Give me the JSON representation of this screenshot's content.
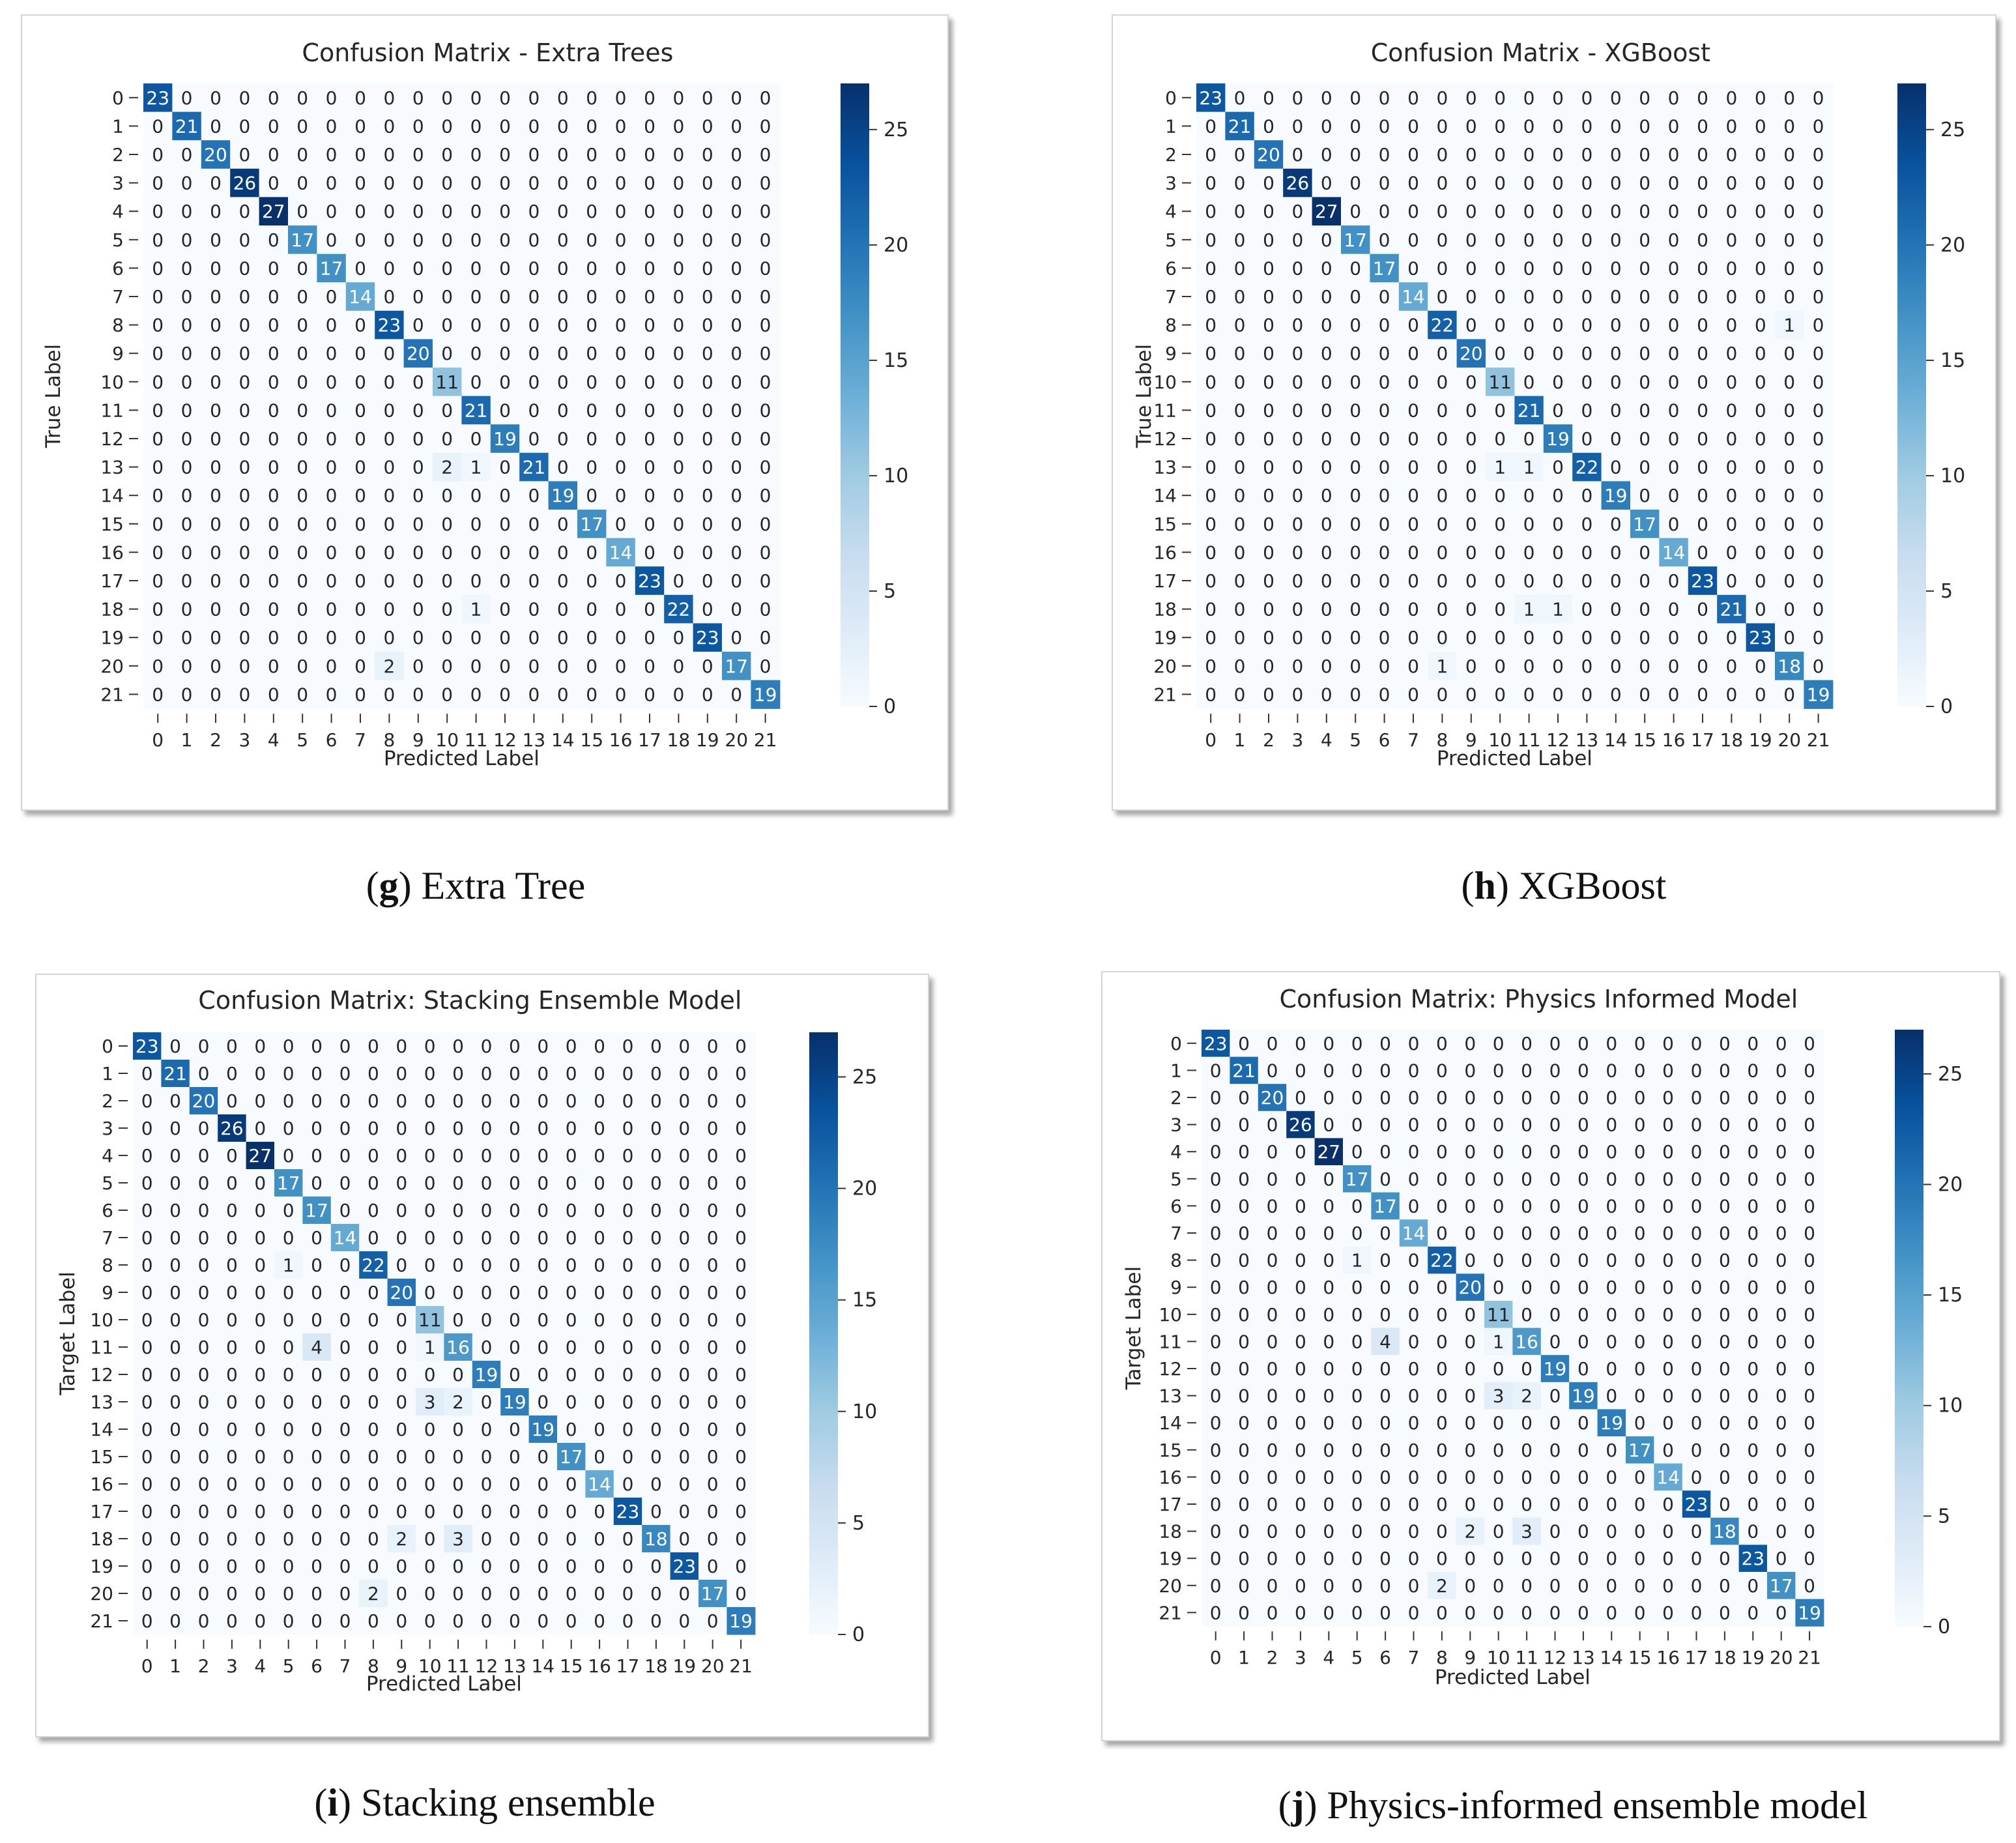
{
  "colorscale": [
    "#f7fbff",
    "#deebf7",
    "#c6dbef",
    "#9ecae1",
    "#6baed6",
    "#4292c6",
    "#2171b5",
    "#08519c",
    "#08306b"
  ],
  "chart_data": [
    {
      "type": "heatmap",
      "title": "Confusion Matrix - Extra Trees",
      "xlabel": "Predicted Label",
      "ylabel": "True Label",
      "labels": [
        "0",
        "1",
        "2",
        "3",
        "4",
        "5",
        "6",
        "7",
        "8",
        "9",
        "10",
        "11",
        "12",
        "13",
        "14",
        "15",
        "16",
        "17",
        "18",
        "19",
        "20",
        "21"
      ],
      "colorbar": {
        "min": 0,
        "max": 27,
        "ticks": [
          0,
          5,
          10,
          15,
          20,
          25
        ]
      },
      "diagonal": [
        23,
        21,
        20,
        26,
        27,
        17,
        17,
        14,
        23,
        20,
        11,
        21,
        19,
        21,
        19,
        17,
        14,
        23,
        22,
        23,
        17,
        19
      ],
      "offdiag": [
        [
          13,
          10,
          2
        ],
        [
          13,
          11,
          1
        ],
        [
          18,
          11,
          1
        ],
        [
          20,
          8,
          2
        ]
      ],
      "caption": {
        "letter": "g",
        "text": "Extra Tree"
      }
    },
    {
      "type": "heatmap",
      "title": "Confusion Matrix - XGBoost",
      "xlabel": "Predicted Label",
      "ylabel": "True Label",
      "labels": [
        "0",
        "1",
        "2",
        "3",
        "4",
        "5",
        "6",
        "7",
        "8",
        "9",
        "10",
        "11",
        "12",
        "13",
        "14",
        "15",
        "16",
        "17",
        "18",
        "19",
        "20",
        "21"
      ],
      "colorbar": {
        "min": 0,
        "max": 27,
        "ticks": [
          0,
          5,
          10,
          15,
          20,
          25
        ]
      },
      "diagonal": [
        23,
        21,
        20,
        26,
        27,
        17,
        17,
        14,
        22,
        20,
        11,
        21,
        19,
        22,
        19,
        17,
        14,
        23,
        21,
        23,
        18,
        19
      ],
      "offdiag": [
        [
          8,
          20,
          1
        ],
        [
          13,
          10,
          1
        ],
        [
          13,
          11,
          1
        ],
        [
          18,
          11,
          1
        ],
        [
          18,
          12,
          1
        ],
        [
          20,
          8,
          1
        ]
      ],
      "caption": {
        "letter": "h",
        "text": "XGBoost"
      }
    },
    {
      "type": "heatmap",
      "title": "Confusion Matrix: Stacking Ensemble Model",
      "xlabel": "Predicted Label",
      "ylabel": "Target Label",
      "labels": [
        "0",
        "1",
        "2",
        "3",
        "4",
        "5",
        "6",
        "7",
        "8",
        "9",
        "10",
        "11",
        "12",
        "13",
        "14",
        "15",
        "16",
        "17",
        "18",
        "19",
        "20",
        "21"
      ],
      "colorbar": {
        "min": 0,
        "max": 27,
        "ticks": [
          0,
          5,
          10,
          15,
          20,
          25
        ]
      },
      "diagonal": [
        23,
        21,
        20,
        26,
        27,
        17,
        17,
        14,
        22,
        20,
        11,
        16,
        19,
        19,
        19,
        17,
        14,
        23,
        18,
        23,
        17,
        19
      ],
      "offdiag": [
        [
          8,
          5,
          1
        ],
        [
          11,
          6,
          4
        ],
        [
          11,
          10,
          1
        ],
        [
          13,
          10,
          3
        ],
        [
          13,
          11,
          2
        ],
        [
          18,
          9,
          2
        ],
        [
          18,
          11,
          3
        ],
        [
          20,
          8,
          2
        ]
      ],
      "caption": {
        "letter": "i",
        "text": "Stacking ensemble"
      }
    },
    {
      "type": "heatmap",
      "title": "Confusion Matrix: Physics Informed Model",
      "xlabel": "Predicted Label",
      "ylabel": "Target Label",
      "labels": [
        "0",
        "1",
        "2",
        "3",
        "4",
        "5",
        "6",
        "7",
        "8",
        "9",
        "10",
        "11",
        "12",
        "13",
        "14",
        "15",
        "16",
        "17",
        "18",
        "19",
        "20",
        "21"
      ],
      "colorbar": {
        "min": 0,
        "max": 27,
        "ticks": [
          0,
          5,
          10,
          15,
          20,
          25
        ]
      },
      "diagonal": [
        23,
        21,
        20,
        26,
        27,
        17,
        17,
        14,
        22,
        20,
        11,
        16,
        19,
        19,
        19,
        17,
        14,
        23,
        18,
        23,
        17,
        19
      ],
      "offdiag": [
        [
          8,
          5,
          1
        ],
        [
          11,
          6,
          4
        ],
        [
          11,
          10,
          1
        ],
        [
          13,
          10,
          3
        ],
        [
          13,
          11,
          2
        ],
        [
          18,
          9,
          2
        ],
        [
          18,
          11,
          3
        ],
        [
          20,
          8,
          2
        ]
      ],
      "caption": {
        "letter": "j",
        "text": "Physics-informed ensemble model"
      }
    }
  ]
}
